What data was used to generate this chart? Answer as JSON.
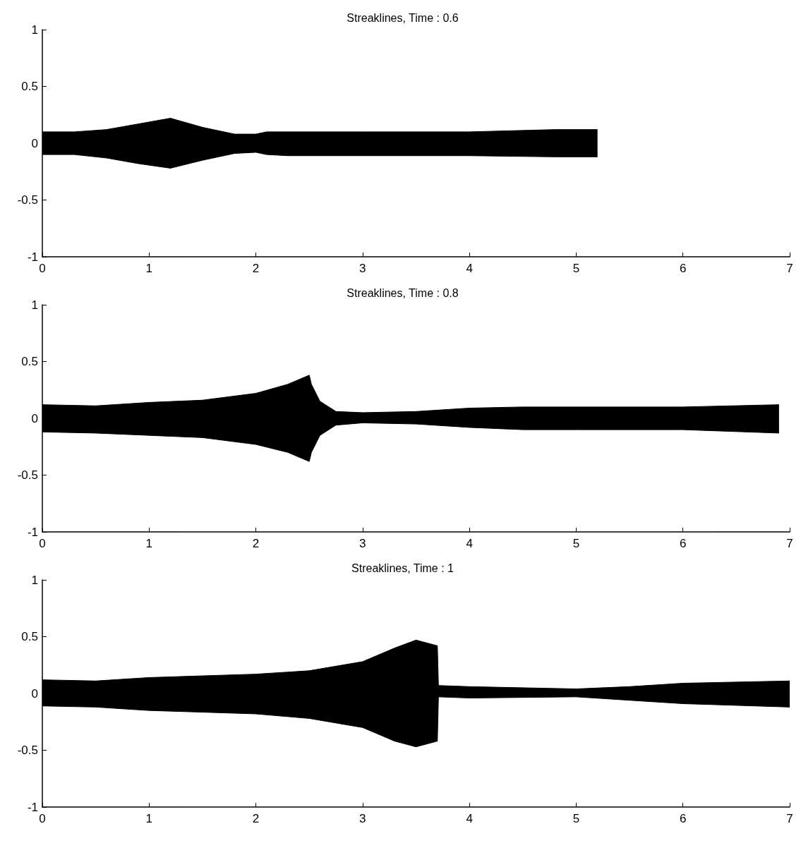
{
  "chart_data": [
    {
      "type": "area",
      "title": "Streaklines, Time : 0.6",
      "xlim": [
        0,
        7
      ],
      "xticks": [
        0,
        1,
        2,
        3,
        4,
        5,
        6,
        7
      ],
      "ylim": [
        -1,
        1
      ],
      "yticks": [
        -1,
        -0.5,
        0,
        0.5,
        1
      ],
      "marker": "none",
      "series": [
        {
          "color": "#000000",
          "x": [
            0,
            0.3,
            0.6,
            0.9,
            1.2,
            1.5,
            1.8,
            2.0,
            2.1,
            2.3,
            3,
            4,
            4.8,
            5.2
          ],
          "values": [
            0.1,
            0.1,
            0.12,
            0.17,
            0.22,
            0.14,
            0.08,
            0.08,
            0.1,
            0.1,
            0.1,
            0.1,
            0.12,
            0.12
          ]
        },
        {
          "color": "#000000",
          "x": [
            0,
            0.3,
            0.6,
            0.9,
            1.2,
            1.5,
            1.8,
            2.0,
            2.1,
            2.3,
            3,
            4,
            4.8,
            5.2
          ],
          "values": [
            -0.1,
            -0.1,
            -0.13,
            -0.18,
            -0.22,
            -0.15,
            -0.09,
            -0.08,
            -0.1,
            -0.11,
            -0.11,
            -0.11,
            -0.12,
            -0.12
          ]
        }
      ]
    },
    {
      "type": "area",
      "title": "Streaklines, Time : 0.8",
      "xlim": [
        0,
        7
      ],
      "xticks": [
        0,
        1,
        2,
        3,
        4,
        5,
        6,
        7
      ],
      "ylim": [
        -1,
        1
      ],
      "yticks": [
        -1,
        -0.5,
        0,
        0.5,
        1
      ],
      "marker": "none",
      "series": [
        {
          "color": "#000000",
          "x": [
            0,
            0.5,
            1,
            1.5,
            2,
            2.3,
            2.5,
            2.52,
            2.6,
            2.75,
            3,
            3.5,
            4,
            4.5,
            5,
            6,
            6.9
          ],
          "values": [
            0.12,
            0.11,
            0.14,
            0.16,
            0.22,
            0.3,
            0.38,
            0.3,
            0.15,
            0.06,
            0.05,
            0.06,
            0.09,
            0.1,
            0.1,
            0.1,
            0.12
          ]
        },
        {
          "color": "#000000",
          "x": [
            0,
            0.5,
            1,
            1.5,
            2,
            2.3,
            2.5,
            2.52,
            2.6,
            2.75,
            3,
            3.5,
            4,
            4.5,
            5,
            6,
            6.9
          ],
          "values": [
            -0.12,
            -0.13,
            -0.15,
            -0.17,
            -0.23,
            -0.3,
            -0.38,
            -0.3,
            -0.15,
            -0.06,
            -0.04,
            -0.05,
            -0.08,
            -0.1,
            -0.1,
            -0.1,
            -0.13
          ]
        }
      ]
    },
    {
      "type": "area",
      "title": "Streaklines, Time : 1",
      "xlim": [
        0,
        7
      ],
      "xticks": [
        0,
        1,
        2,
        3,
        4,
        5,
        6,
        7
      ],
      "ylim": [
        -1,
        1
      ],
      "yticks": [
        -1,
        -0.5,
        0,
        0.5,
        1
      ],
      "marker": "none",
      "series": [
        {
          "color": "#000000",
          "x": [
            0,
            0.5,
            1,
            2,
            2.5,
            3,
            3.3,
            3.5,
            3.7,
            3.71,
            4,
            5,
            5.5,
            6,
            7
          ],
          "values": [
            0.12,
            0.11,
            0.14,
            0.17,
            0.2,
            0.28,
            0.4,
            0.47,
            0.42,
            0.07,
            0.06,
            0.04,
            0.06,
            0.09,
            0.11
          ]
        },
        {
          "color": "#000000",
          "x": [
            0,
            0.5,
            1,
            2,
            2.5,
            3,
            3.3,
            3.5,
            3.7,
            3.71,
            4,
            5,
            5.5,
            6,
            7
          ],
          "values": [
            -0.11,
            -0.12,
            -0.15,
            -0.18,
            -0.22,
            -0.3,
            -0.42,
            -0.47,
            -0.42,
            -0.03,
            -0.04,
            -0.03,
            -0.06,
            -0.09,
            -0.12
          ]
        }
      ]
    }
  ]
}
